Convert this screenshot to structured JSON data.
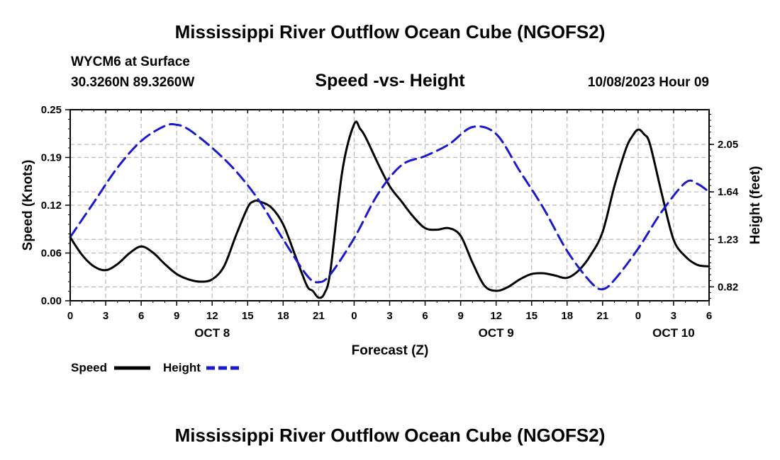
{
  "header": {
    "title": "Mississippi River Outflow Ocean Cube (NGOFS2)",
    "station": "WYCM6 at Surface",
    "coords": "30.3260N  89.3260W",
    "subtitle": "Speed -vs- Height",
    "datetime": "10/08/2023 Hour 09"
  },
  "footer": {
    "title": "Mississippi River Outflow Ocean Cube (NGOFS2)"
  },
  "chart_data": {
    "type": "line",
    "title": "Speed -vs- Height",
    "xlabel": "Forecast (Z)",
    "ylabel": "Speed (Knots)",
    "y2label": "Height (feet)",
    "xlim": [
      0,
      54
    ],
    "ylim": [
      0,
      0.25
    ],
    "y2lim": [
      0.7,
      2.35
    ],
    "x_ticks": [
      0,
      3,
      6,
      9,
      12,
      15,
      18,
      21,
      24,
      27,
      30,
      33,
      36,
      39,
      42,
      45,
      48,
      51,
      54
    ],
    "x_tick_labels": [
      "0",
      "3",
      "6",
      "9",
      "12",
      "15",
      "18",
      "21",
      "0",
      "3",
      "6",
      "9",
      "12",
      "15",
      "18",
      "21",
      "0",
      "3",
      "6"
    ],
    "y_ticks": [
      0,
      0.0625,
      0.125,
      0.1875,
      0.25
    ],
    "y_tick_labels": [
      "0.00",
      "0.06",
      "0.12",
      "0.19",
      "0.25"
    ],
    "y2_ticks": [
      0.82,
      1.23,
      1.64,
      2.05
    ],
    "y2_tick_labels": [
      "0.82",
      "1.23",
      "1.64",
      "2.05"
    ],
    "date_labels": [
      {
        "label": "OCT 8",
        "x": 12
      },
      {
        "label": "OCT 9",
        "x": 36
      },
      {
        "label": "OCT 10",
        "x": 51
      }
    ],
    "grid": true,
    "legend_position": "bottom-left",
    "series": [
      {
        "name": "Speed",
        "axis": "left",
        "color": "#000000",
        "dash": "solid",
        "x": [
          0,
          1,
          2,
          3,
          4,
          5,
          6,
          7,
          8,
          9,
          10,
          11,
          12,
          13,
          14,
          15,
          15.5,
          16,
          17,
          18,
          19,
          20,
          20.5,
          21,
          21.5,
          22,
          23,
          24,
          24.5,
          25,
          26,
          27,
          28,
          29,
          30,
          31,
          32,
          33,
          34,
          35,
          36,
          37,
          38,
          39,
          40,
          41,
          42,
          43,
          44,
          45,
          46,
          47,
          47.5,
          48,
          48.5,
          49,
          50,
          51,
          52,
          53,
          54
        ],
        "values": [
          0.083,
          0.06,
          0.045,
          0.04,
          0.048,
          0.062,
          0.071,
          0.063,
          0.048,
          0.035,
          0.028,
          0.025,
          0.028,
          0.045,
          0.085,
          0.122,
          0.13,
          0.13,
          0.122,
          0.1,
          0.06,
          0.02,
          0.013,
          0.004,
          0.01,
          0.04,
          0.17,
          0.231,
          0.225,
          0.213,
          0.18,
          0.15,
          0.13,
          0.11,
          0.095,
          0.093,
          0.095,
          0.085,
          0.05,
          0.02,
          0.013,
          0.018,
          0.028,
          0.035,
          0.036,
          0.033,
          0.03,
          0.04,
          0.06,
          0.09,
          0.15,
          0.2,
          0.215,
          0.224,
          0.218,
          0.205,
          0.14,
          0.08,
          0.058,
          0.047,
          0.045
        ]
      },
      {
        "name": "Height",
        "axis": "right",
        "color": "#1a1acc",
        "dash": "dashed",
        "x": [
          0,
          2,
          4,
          6,
          8,
          9,
          10,
          12,
          14,
          16,
          18,
          20,
          21,
          22,
          24,
          26,
          28,
          30,
          32,
          34,
          36,
          38,
          40,
          42,
          44,
          45,
          46,
          48,
          50,
          52,
          53,
          54
        ],
        "values": [
          1.25,
          1.55,
          1.85,
          2.08,
          2.21,
          2.22,
          2.18,
          2.02,
          1.82,
          1.56,
          1.23,
          0.92,
          0.86,
          0.93,
          1.24,
          1.62,
          1.87,
          1.95,
          2.05,
          2.2,
          2.14,
          1.82,
          1.5,
          1.13,
          0.86,
          0.8,
          0.88,
          1.15,
          1.47,
          1.72,
          1.71,
          1.64
        ]
      }
    ]
  }
}
